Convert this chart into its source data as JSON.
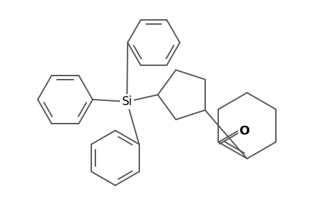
{
  "background": "#ffffff",
  "line_color": "#555555",
  "line_width": 1.4,
  "text_color": "#000000",
  "si_label": "Si",
  "o_label": "O",
  "figsize": [
    4.6,
    3.0
  ],
  "dpi": 100
}
